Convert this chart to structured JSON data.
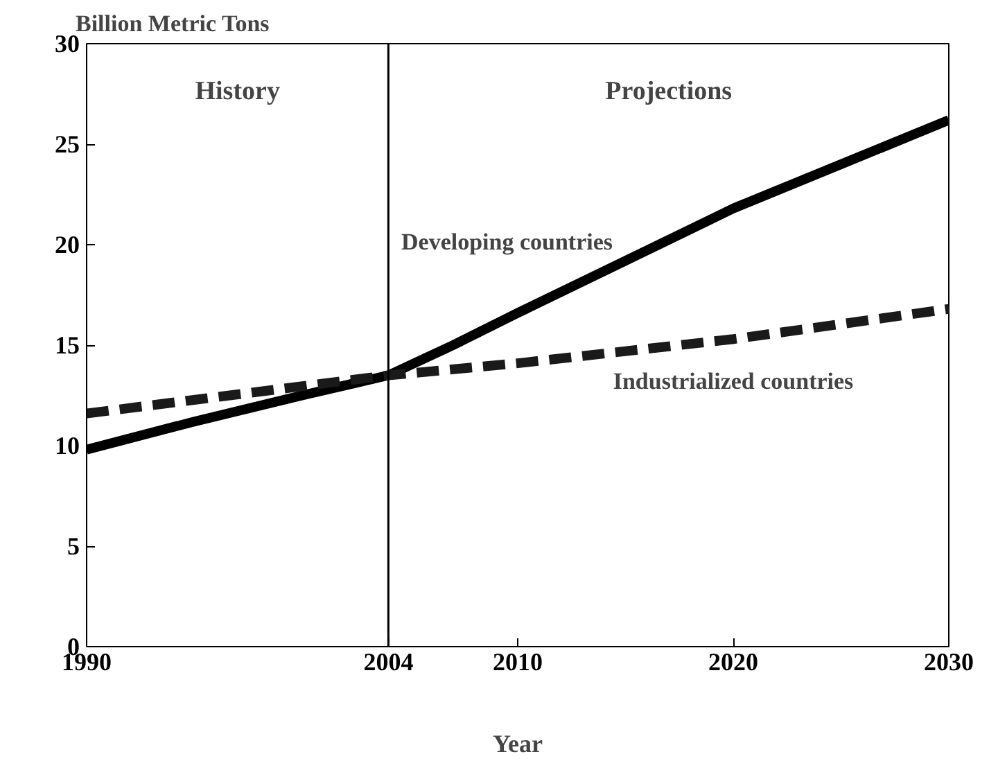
{
  "chart_data": {
    "type": "line",
    "ylabel": "Billion Metric Tons",
    "xlabel": "Year",
    "series": [
      {
        "name": "Developing countries",
        "color": "#000000",
        "line_style": "solid",
        "x": [
          1990,
          1995,
          2000,
          2004,
          2007,
          2010,
          2015,
          2020,
          2025,
          2030
        ],
        "values": [
          9.8,
          11.2,
          12.5,
          13.5,
          15.0,
          16.6,
          19.2,
          21.8,
          24.0,
          26.2
        ]
      },
      {
        "name": "Industrialized countries",
        "color": "#1a1a1a",
        "line_style": "dashed",
        "x": [
          1990,
          2004,
          2010,
          2020,
          2030
        ],
        "values": [
          11.6,
          13.5,
          14.1,
          15.3,
          16.8
        ]
      }
    ],
    "xlim": [
      1990,
      2030
    ],
    "xticks": [
      1990,
      2004,
      2010,
      2020,
      2030
    ],
    "ylim": [
      0,
      30
    ],
    "yticks": [
      0,
      5,
      10,
      15,
      20,
      25,
      30
    ],
    "ref_lines": [
      {
        "axis": "x",
        "value": 2004,
        "color": "#000000"
      }
    ],
    "annotations": [
      "History",
      "Projections"
    ],
    "grid": false,
    "marker": "none"
  }
}
